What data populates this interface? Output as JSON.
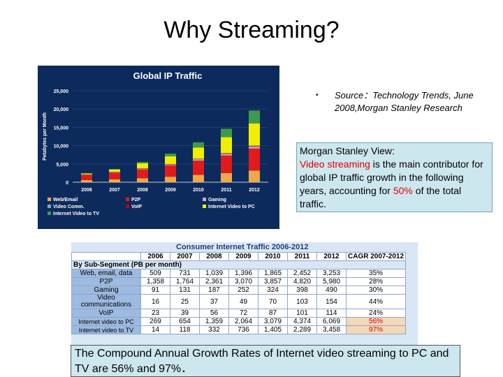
{
  "slide": {
    "title": "Why Streaming?",
    "source_bullet": "•",
    "source_text": "Source：Technology Trends, June 2008,Morgan Stanley Research",
    "view_line1": "Morgan Stanley View:",
    "view_red1": "Video streaming",
    "view_mid": " is the main contributor for global IP traffic growth in the following years, accounting for ",
    "view_red2": "50%",
    "view_end": " of the total traffic.",
    "caption": "The Compound Annual Growth Rates of Internet video streaming to PC and TV are 56% and 97%．"
  },
  "chart_data": {
    "type": "bar",
    "title": "Global IP Traffic",
    "ylabel": "Petabytes per Month",
    "categories": [
      "2006",
      "2007",
      "2008",
      "2009",
      "2010",
      "2011",
      "2012"
    ],
    "ylim": [
      0,
      25000
    ],
    "yticks": [
      "0",
      "5,000",
      "10,000",
      "15,000",
      "20,000",
      "25,000"
    ],
    "stacked": true,
    "series": [
      {
        "name": "Web/Email",
        "color": "#f0a94a",
        "values": [
          600,
          800,
          1100,
          1500,
          2000,
          2500,
          3200
        ]
      },
      {
        "name": "P2P",
        "color": "#e11b1b",
        "values": [
          1400,
          1800,
          2400,
          3100,
          3900,
          4800,
          6000
        ]
      },
      {
        "name": "Gaming",
        "color": "#c9a9c9",
        "values": [
          100,
          130,
          190,
          250,
          330,
          400,
          500
        ]
      },
      {
        "name": "Video Comm.",
        "color": "#8fa3b8",
        "values": [
          20,
          30,
          40,
          50,
          70,
          100,
          150
        ]
      },
      {
        "name": "VoIP",
        "color": "#b3001b",
        "values": [
          30,
          40,
          60,
          70,
          100,
          120,
          140
        ]
      },
      {
        "name": "Internet Video to PC",
        "color": "#f2ee00",
        "values": [
          300,
          700,
          1400,
          2100,
          3100,
          4400,
          6100
        ]
      },
      {
        "name": "Internet Video to TV",
        "color": "#3e9a4e",
        "values": [
          20,
          120,
          340,
          740,
          1400,
          2300,
          3500
        ]
      }
    ],
    "legend_cols": [
      [
        "Web/Email",
        "Video Comm.",
        "Internet Video to TV"
      ],
      [
        "P2P",
        "VoIP"
      ],
      [
        "Gaming",
        "Internet Video to PC"
      ]
    ]
  },
  "table": {
    "title": "Consumer Internet Traffic 2006-2012",
    "headers": [
      "",
      "2006",
      "2007",
      "2008",
      "2009",
      "2010",
      "2011",
      "2012",
      "CAGR 2007-2012"
    ],
    "subheader": "By Sub-Segment (PB per month)",
    "rows": [
      {
        "label": "Web, email, data",
        "values": [
          "509",
          "731",
          "1,039",
          "1,396",
          "1,865",
          "2,452",
          "3,253"
        ],
        "cagr": "35%"
      },
      {
        "label": "P2P",
        "values": [
          "1,358",
          "1,764",
          "2,361",
          "3,070",
          "3,857",
          "4,820",
          "5,980"
        ],
        "cagr": "28%"
      },
      {
        "label": "Gaming",
        "values": [
          "91",
          "131",
          "187",
          "252",
          "324",
          "398",
          "490"
        ],
        "cagr": "30%"
      },
      {
        "label": "Video communications",
        "values": [
          "16",
          "25",
          "37",
          "49",
          "70",
          "103",
          "154"
        ],
        "cagr": "44%"
      },
      {
        "label": "VoIP",
        "values": [
          "23",
          "39",
          "56",
          "72",
          "87",
          "101",
          "114"
        ],
        "cagr": "24%"
      },
      {
        "label": "Internet video to PC",
        "values": [
          "269",
          "654",
          "1,359",
          "2,064",
          "3,079",
          "4,374",
          "6,069"
        ],
        "cagr": "56%",
        "highlight": true
      },
      {
        "label": "Internet video to TV",
        "values": [
          "14",
          "118",
          "332",
          "736",
          "1,405",
          "2,289",
          "3,458"
        ],
        "cagr": "97%",
        "highlight": true
      }
    ]
  }
}
